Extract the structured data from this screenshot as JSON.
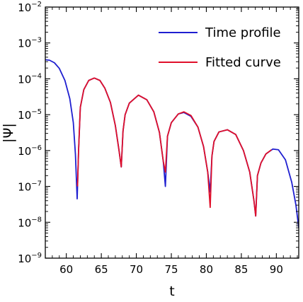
{
  "chart_data": {
    "type": "line",
    "title": "",
    "xlabel": "t",
    "ylabel": "|Ψ|",
    "xlim": [
      57,
      93.2
    ],
    "ylim_log10": [
      -9,
      -2
    ],
    "y_scale": "log",
    "grid": false,
    "legend_position": "top-right",
    "x_ticks": [
      60,
      65,
      70,
      75,
      80,
      85,
      90
    ],
    "x_tick_labels": [
      "60",
      "65",
      "70",
      "75",
      "80",
      "85",
      "90"
    ],
    "y_ticks_log10": [
      -9,
      -8,
      -7,
      -6,
      -5,
      -4,
      -3,
      -2
    ],
    "y_tick_labels": [
      {
        "base": "10",
        "exp": "−9"
      },
      {
        "base": "10",
        "exp": "−8"
      },
      {
        "base": "10",
        "exp": "−7"
      },
      {
        "base": "10",
        "exp": "−6"
      },
      {
        "base": "10",
        "exp": "−5"
      },
      {
        "base": "10",
        "exp": "−4"
      },
      {
        "base": "10",
        "exp": "−3"
      },
      {
        "base": "10",
        "exp": "−2"
      }
    ],
    "series": [
      {
        "name": "Time profile",
        "color": "#1f1fd0",
        "x": [
          57,
          57.6,
          58.3,
          59.0,
          59.8,
          60.5,
          61.0,
          61.3,
          61.55,
          61.75,
          62.0,
          62.5,
          63.2,
          64.0,
          64.8,
          65.5,
          66.3,
          67.0,
          67.5,
          67.85,
          68.1,
          68.4,
          69.0,
          70.3,
          71.5,
          72.5,
          73.3,
          73.85,
          74.15,
          74.45,
          75.0,
          76.0,
          76.8,
          77.8,
          78.8,
          79.6,
          80.2,
          80.55,
          80.8,
          81.1,
          81.8,
          83.0,
          84.2,
          85.3,
          86.2,
          86.8,
          87.05,
          87.3,
          87.8,
          88.5,
          89.5,
          90.3,
          91.3,
          92.2,
          92.8,
          93.2
        ],
        "y": [
          0.00034,
          0.00033,
          0.00028,
          0.000195,
          9e-05,
          2.8e-05,
          6e-06,
          8e-07,
          4.5e-08,
          1e-06,
          1.6e-05,
          5e-05,
          9e-05,
          0.000105,
          9e-05,
          5.5e-05,
          2.2e-05,
          5e-06,
          1.1e-06,
          3.5e-07,
          3.5e-06,
          1e-05,
          2.1e-05,
          3.5e-05,
          2.6e-05,
          1.2e-05,
          3.2e-06,
          5e-07,
          1e-07,
          2.5e-06,
          6e-06,
          1.05e-05,
          1.15e-05,
          9e-06,
          4.5e-06,
          1.3e-06,
          2.5e-07,
          7e-08,
          7e-07,
          1.8e-06,
          3.3e-06,
          3.8e-06,
          2.8e-06,
          1e-06,
          2.5e-07,
          4e-08,
          1.5e-08,
          2e-07,
          4.5e-07,
          8e-07,
          1.1e-06,
          1.05e-06,
          5.5e-07,
          1.3e-07,
          3e-08,
          7e-09
        ]
      },
      {
        "name": "Fitted curve",
        "color": "#e0102a",
        "x": [
          61.6,
          61.75,
          62.0,
          62.5,
          63.2,
          64.0,
          64.8,
          65.5,
          66.3,
          67.0,
          67.5,
          67.85,
          68.1,
          68.4,
          69.0,
          70.3,
          71.5,
          72.5,
          73.3,
          73.85,
          74.15,
          74.45,
          75.0,
          76.0,
          76.8,
          77.8,
          78.8,
          79.6,
          80.2,
          80.55,
          80.8,
          81.1,
          81.8,
          83.0,
          84.2,
          85.3,
          86.2,
          86.8,
          87.05,
          87.3,
          87.8,
          88.5,
          89.3
        ],
        "y": [
          1e-07,
          1e-06,
          1.6e-05,
          5e-05,
          9e-05,
          0.000105,
          9e-05,
          5.5e-05,
          2.2e-05,
          5e-06,
          1.1e-06,
          3.5e-07,
          3.5e-06,
          1e-05,
          2.1e-05,
          3.5e-05,
          2.6e-05,
          1.2e-05,
          3.2e-06,
          5e-07,
          2.5e-07,
          2.5e-06,
          6e-06,
          1.05e-05,
          1.2e-05,
          9.5e-06,
          4.5e-06,
          1.3e-06,
          2.5e-07,
          2.6e-08,
          7e-07,
          1.8e-06,
          3.3e-06,
          3.8e-06,
          2.8e-06,
          1e-06,
          2.5e-07,
          4e-08,
          1.5e-08,
          2e-07,
          4.5e-07,
          8e-07,
          1.05e-06
        ]
      }
    ]
  }
}
